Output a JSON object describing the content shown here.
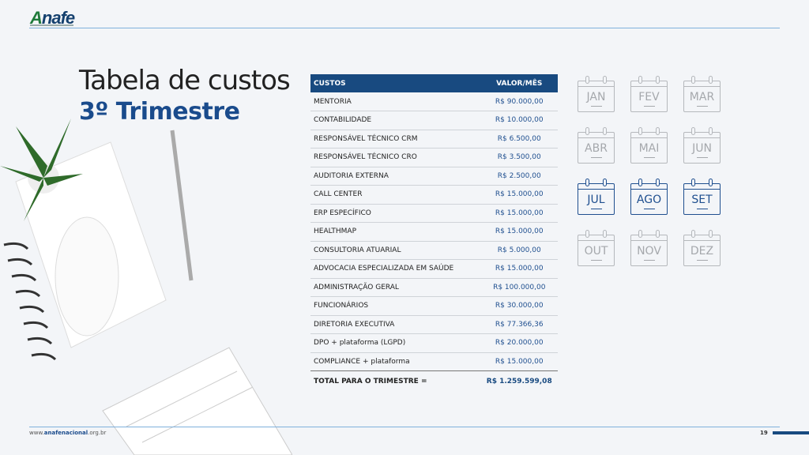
{
  "logo": {
    "text": "Anafe"
  },
  "title": {
    "line1": "Tabela de custos",
    "line2": "3º Trimestre"
  },
  "table": {
    "headers": [
      "CUSTOS",
      "VALOR/MÊS"
    ],
    "rows": [
      [
        "MENTORIA",
        "R$ 90.000,00"
      ],
      [
        "CONTABILIDADE",
        "R$ 10.000,00"
      ],
      [
        "RESPONSÁVEL TÉCNICO CRM",
        "R$ 6.500,00"
      ],
      [
        "RESPONSÁVEL TÉCNICO CRO",
        "R$ 3.500,00"
      ],
      [
        "AUDITORIA EXTERNA",
        "R$ 2.500,00"
      ],
      [
        "CALL CENTER",
        "R$ 15.000,00"
      ],
      [
        "ERP ESPECÍFICO",
        "R$ 15.000,00"
      ],
      [
        "HEALTHMAP",
        "R$ 15.000,00"
      ],
      [
        "CONSULTORIA ATUARIAL",
        "R$ 5.000,00"
      ],
      [
        "ADVOCACIA ESPECIALIZADA EM SAÚDE",
        "R$ 15.000,00"
      ],
      [
        "ADMINISTRAÇÃO GERAL",
        "R$ 100.000,00"
      ],
      [
        "FUNCIONÁRIOS",
        "R$ 30.000,00"
      ],
      [
        "DIRETORIA EXECUTIVA",
        "R$ 77.366,36"
      ],
      [
        "DPO + plataforma (LGPD)",
        "R$ 20.000,00"
      ],
      [
        "COMPLIANCE + plataforma",
        "R$ 15.000,00"
      ]
    ],
    "total": {
      "label": "TOTAL PARA O TRIMESTRE =",
      "value": "R$ 1.259.599,08"
    }
  },
  "months": [
    {
      "label": "JAN",
      "active": false
    },
    {
      "label": "FEV",
      "active": false
    },
    {
      "label": "MAR",
      "active": false
    },
    {
      "label": "ABR",
      "active": false
    },
    {
      "label": "MAI",
      "active": false
    },
    {
      "label": "JUN",
      "active": false
    },
    {
      "label": "JUL",
      "active": true
    },
    {
      "label": "AGO",
      "active": true
    },
    {
      "label": "SET",
      "active": true
    },
    {
      "label": "OUT",
      "active": false
    },
    {
      "label": "NOV",
      "active": false
    },
    {
      "label": "DEZ",
      "active": false
    }
  ],
  "footer": {
    "url_prefix": "www.",
    "url_brand": "anafenacional",
    "url_suffix": ".org.br",
    "page": "19"
  },
  "colors": {
    "primary": "#184a80",
    "accent_line": "#7fb0dc",
    "inactive": "#b5b8bc"
  }
}
